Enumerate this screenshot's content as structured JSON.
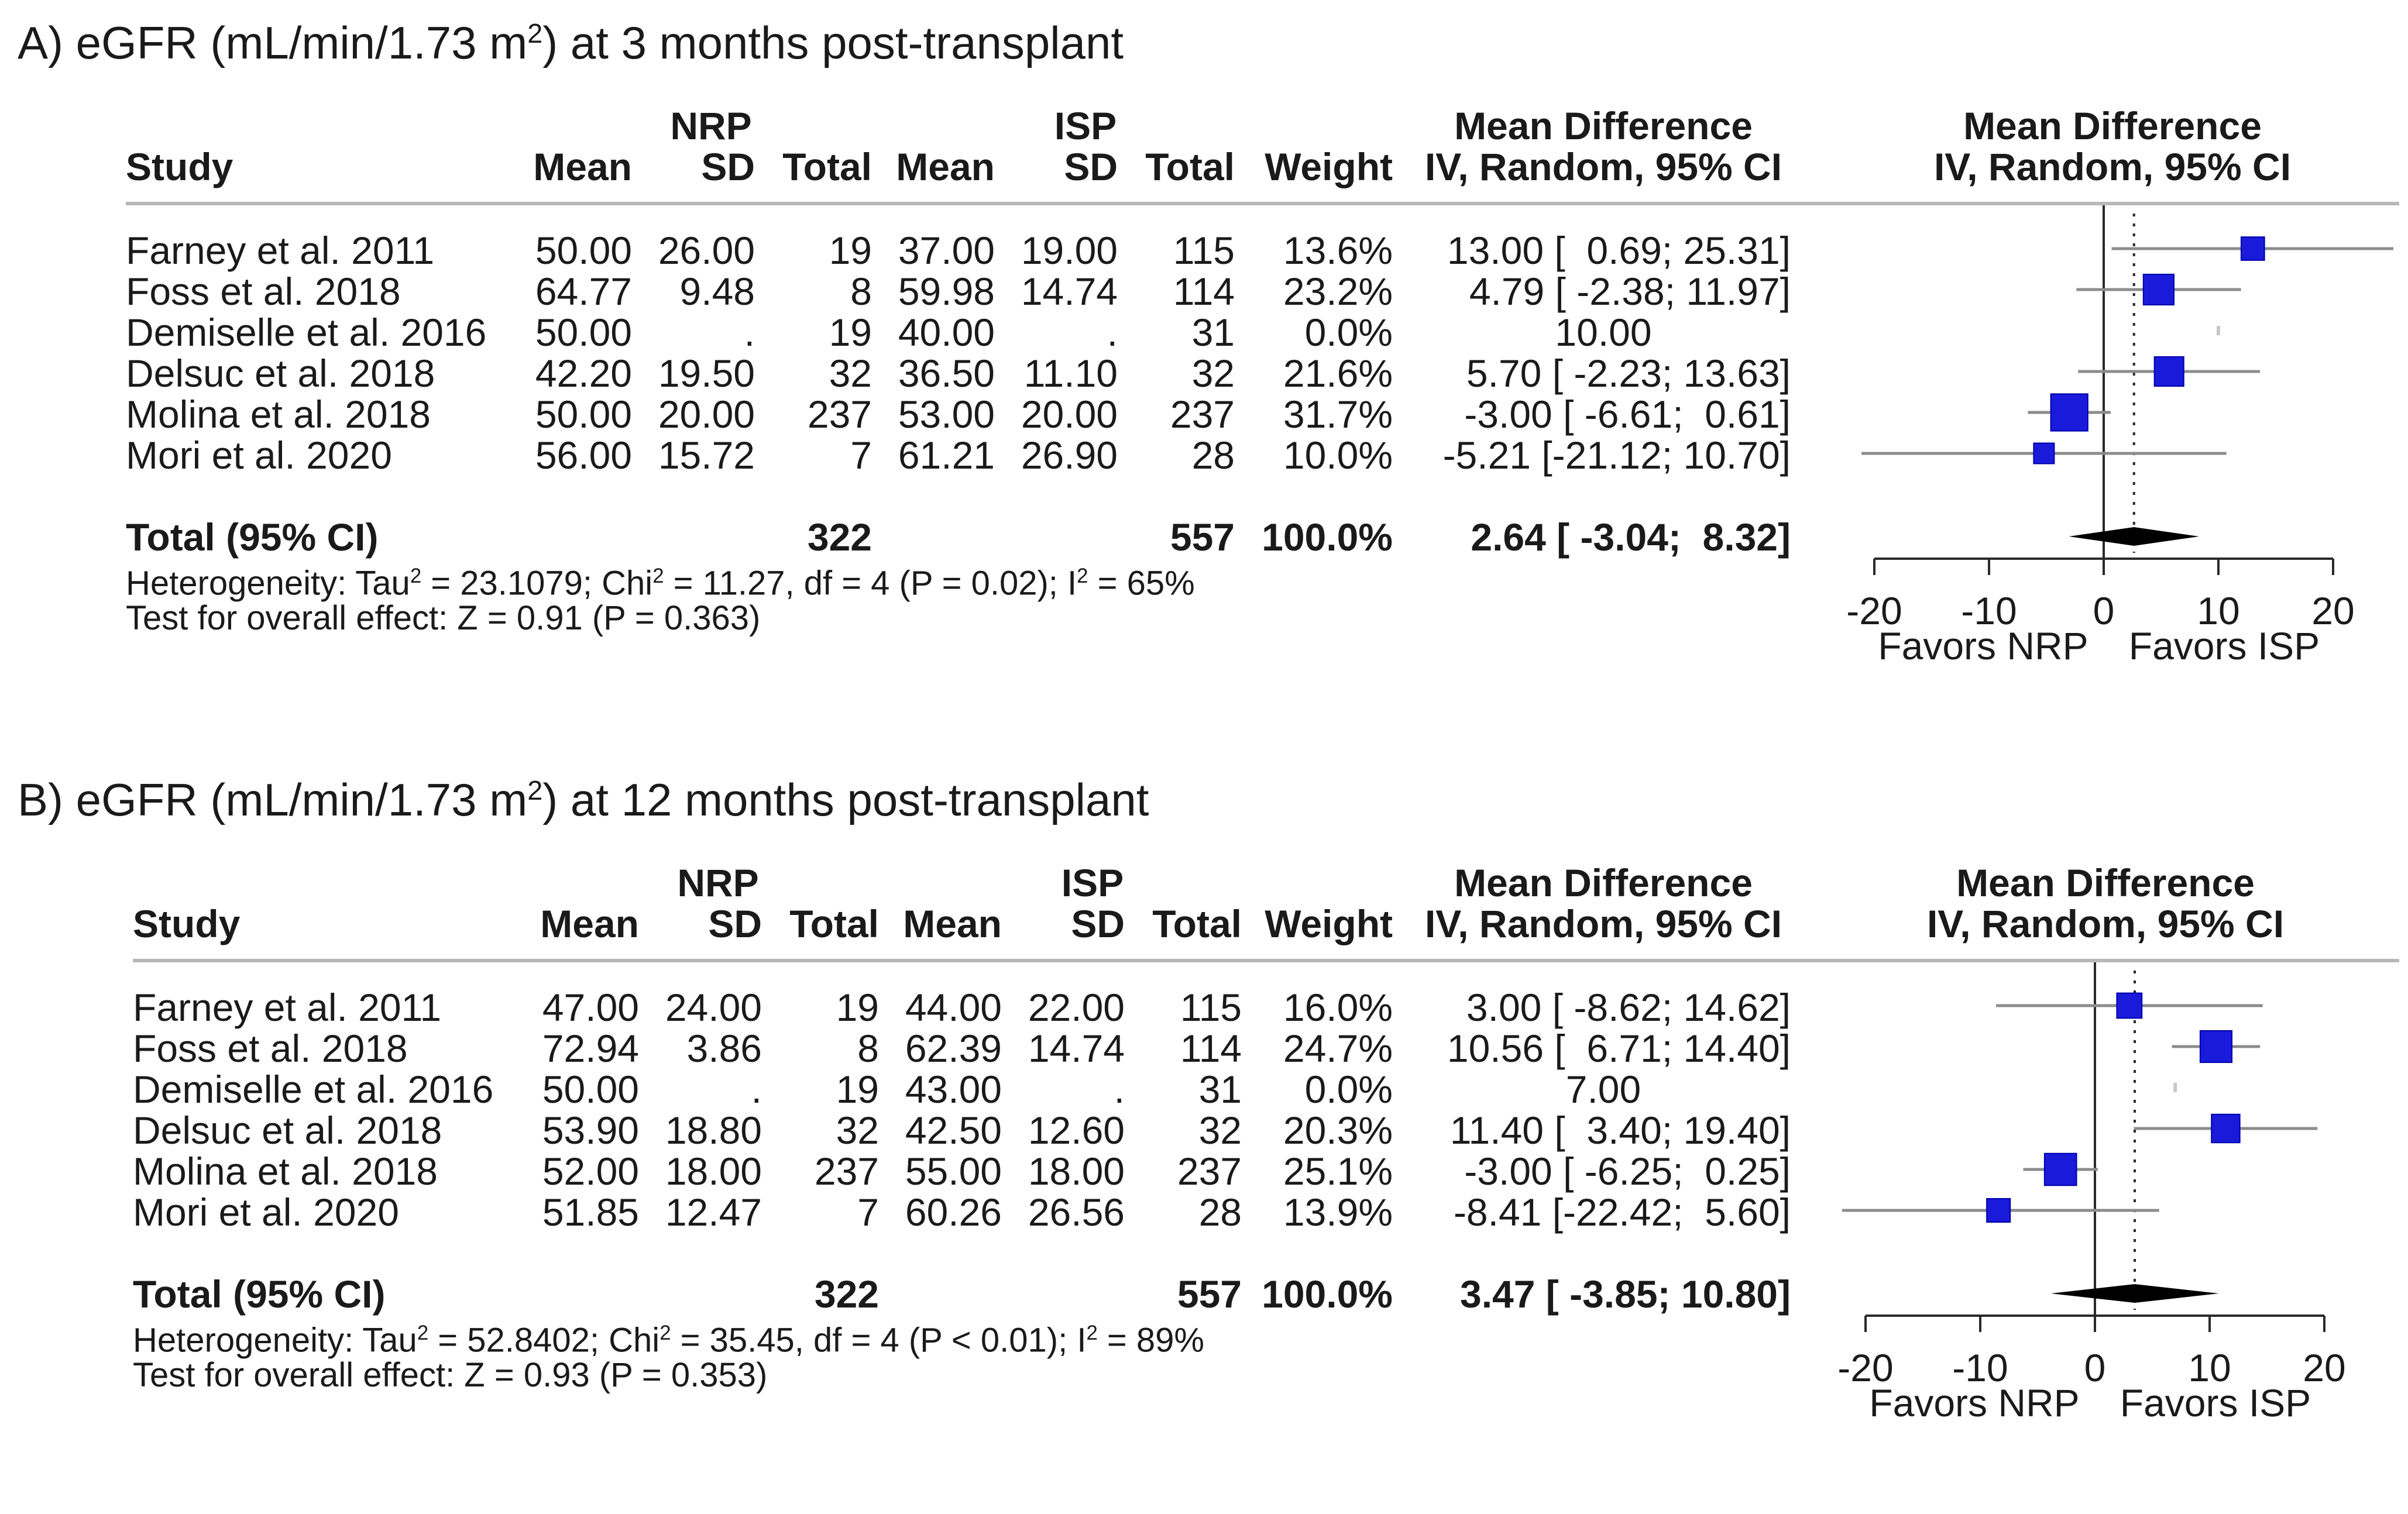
{
  "chart_data": [
    {
      "type": "forest",
      "panel_title": "A) eGFR (mL/min/1.73 m",
      "panel_title_sup": "2",
      "panel_title_rest": ") at 3 months post-transplant",
      "headers": {
        "study": "Study",
        "nrp": "NRP",
        "isp": "ISP",
        "mean": "Mean",
        "sd": "SD",
        "total": "Total",
        "weight": "Weight",
        "md1": "Mean Difference",
        "md2": "IV, Random, 95% CI",
        "plot1": "Mean Difference",
        "plot2": "IV, Random, 95% CI"
      },
      "studies": [
        {
          "name": "Farney et al. 2011",
          "nrp_mean": "50.00",
          "nrp_sd": "26.00",
          "nrp_total": "19",
          "isp_mean": "37.00",
          "isp_sd": "19.00",
          "isp_total": "115",
          "weight": "13.6%",
          "md_text": "13.00 [  0.69; 25.31]",
          "md": 13.0,
          "lo": 0.69,
          "hi": 25.31,
          "w": 13.6
        },
        {
          "name": "Foss et al. 2018",
          "nrp_mean": "64.77",
          "nrp_sd": "9.48",
          "nrp_total": "8",
          "isp_mean": "59.98",
          "isp_sd": "14.74",
          "isp_total": "114",
          "weight": "23.2%",
          "md_text": "4.79 [ -2.38; 11.97]",
          "md": 4.79,
          "lo": -2.38,
          "hi": 11.97,
          "w": 23.2
        },
        {
          "name": "Demiselle et al. 2016",
          "nrp_mean": "50.00",
          "nrp_sd": ".",
          "nrp_total": "19",
          "isp_mean": "40.00",
          "isp_sd": ".",
          "isp_total": "31",
          "weight": "0.0%",
          "md_text": "10.00",
          "md": 10.0,
          "lo": null,
          "hi": null,
          "w": 0.0
        },
        {
          "name": "Delsuc et al. 2018",
          "nrp_mean": "42.20",
          "nrp_sd": "19.50",
          "nrp_total": "32",
          "isp_mean": "36.50",
          "isp_sd": "11.10",
          "isp_total": "32",
          "weight": "21.6%",
          "md_text": "5.70 [ -2.23; 13.63]",
          "md": 5.7,
          "lo": -2.23,
          "hi": 13.63,
          "w": 21.6
        },
        {
          "name": "Molina et al. 2018",
          "nrp_mean": "50.00",
          "nrp_sd": "20.00",
          "nrp_total": "237",
          "isp_mean": "53.00",
          "isp_sd": "20.00",
          "isp_total": "237",
          "weight": "31.7%",
          "md_text": "-3.00 [ -6.61;  0.61]",
          "md": -3.0,
          "lo": -6.61,
          "hi": 0.61,
          "w": 31.7
        },
        {
          "name": "Mori et al. 2020",
          "nrp_mean": "56.00",
          "nrp_sd": "15.72",
          "nrp_total": "7",
          "isp_mean": "61.21",
          "isp_sd": "26.90",
          "isp_total": "28",
          "weight": "10.0%",
          "md_text": "-5.21 [-21.12; 10.70]",
          "md": -5.21,
          "lo": -21.12,
          "hi": 10.7,
          "w": 10.0
        }
      ],
      "total": {
        "label": "Total (95% CI)",
        "nrp_total": "322",
        "isp_total": "557",
        "weight": "100.0%",
        "md_text": "2.64 [ -3.04;  8.32]",
        "md": 2.64,
        "lo": -3.04,
        "hi": 8.32
      },
      "heterogeneity": {
        "prefix": "Heterogeneity: Tau",
        "tau2": "2",
        "mid": " = 23.1079; Chi",
        "chi2": "2",
        "rest": " = 11.27, df = 4 (P = 0.02); I",
        "i2": "2",
        "end": " = 65%"
      },
      "overall": "Test for overall effect: Z = 0.91 (P = 0.363)",
      "axis": {
        "ticks": [
          -20,
          -10,
          0,
          10,
          20
        ],
        "tick_labels": [
          "-20",
          "-10",
          "0",
          "10",
          "20"
        ],
        "xlim": [
          -20,
          20
        ]
      },
      "favors_left": "Favors NRP",
      "favors_right": "Favors ISP"
    },
    {
      "type": "forest",
      "panel_title": "B) eGFR (mL/min/1.73 m",
      "panel_title_sup": "2",
      "panel_title_rest": ") at 12 months post-transplant",
      "headers": {
        "study": "Study",
        "nrp": "NRP",
        "isp": "ISP",
        "mean": "Mean",
        "sd": "SD",
        "total": "Total",
        "weight": "Weight",
        "md1": "Mean Difference",
        "md2": "IV, Random, 95% CI",
        "plot1": "Mean Difference",
        "plot2": "IV, Random, 95% CI"
      },
      "studies": [
        {
          "name": "Farney et al. 2011",
          "nrp_mean": "47.00",
          "nrp_sd": "24.00",
          "nrp_total": "19",
          "isp_mean": "44.00",
          "isp_sd": "22.00",
          "isp_total": "115",
          "weight": "16.0%",
          "md_text": "3.00 [ -8.62; 14.62]",
          "md": 3.0,
          "lo": -8.62,
          "hi": 14.62,
          "w": 16.0
        },
        {
          "name": "Foss et al. 2018",
          "nrp_mean": "72.94",
          "nrp_sd": "3.86",
          "nrp_total": "8",
          "isp_mean": "62.39",
          "isp_sd": "14.74",
          "isp_total": "114",
          "weight": "24.7%",
          "md_text": "10.56 [  6.71; 14.40]",
          "md": 10.56,
          "lo": 6.71,
          "hi": 14.4,
          "w": 24.7
        },
        {
          "name": "Demiselle et al. 2016",
          "nrp_mean": "50.00",
          "nrp_sd": ".",
          "nrp_total": "19",
          "isp_mean": "43.00",
          "isp_sd": ".",
          "isp_total": "31",
          "weight": "0.0%",
          "md_text": "7.00",
          "md": 7.0,
          "lo": null,
          "hi": null,
          "w": 0.0
        },
        {
          "name": "Delsuc et al. 2018",
          "nrp_mean": "53.90",
          "nrp_sd": "18.80",
          "nrp_total": "32",
          "isp_mean": "42.50",
          "isp_sd": "12.60",
          "isp_total": "32",
          "weight": "20.3%",
          "md_text": "11.40 [  3.40; 19.40]",
          "md": 11.4,
          "lo": 3.4,
          "hi": 19.4,
          "w": 20.3
        },
        {
          "name": "Molina et al. 2018",
          "nrp_mean": "52.00",
          "nrp_sd": "18.00",
          "nrp_total": "237",
          "isp_mean": "55.00",
          "isp_sd": "18.00",
          "isp_total": "237",
          "weight": "25.1%",
          "md_text": "-3.00 [ -6.25;  0.25]",
          "md": -3.0,
          "lo": -6.25,
          "hi": 0.25,
          "w": 25.1
        },
        {
          "name": "Mori et al. 2020",
          "nrp_mean": "51.85",
          "nrp_sd": "12.47",
          "nrp_total": "7",
          "isp_mean": "60.26",
          "isp_sd": "26.56",
          "isp_total": "28",
          "weight": "13.9%",
          "md_text": "-8.41 [-22.42;  5.60]",
          "md": -8.41,
          "lo": -22.42,
          "hi": 5.6,
          "w": 13.9
        }
      ],
      "total": {
        "label": "Total (95% CI)",
        "nrp_total": "322",
        "isp_total": "557",
        "weight": "100.0%",
        "md_text": "3.47 [ -3.85; 10.80]",
        "md": 3.47,
        "lo": -3.85,
        "hi": 10.8
      },
      "heterogeneity": {
        "prefix": "Heterogeneity: Tau",
        "tau2": "2",
        "mid": " = 52.8402; Chi",
        "chi2": "2",
        "rest": " = 35.45, df = 4 (P < 0.01); I",
        "i2": "2",
        "end": " = 89%"
      },
      "overall": "Test for overall effect: Z = 0.93 (P = 0.353)",
      "axis": {
        "ticks": [
          -20,
          -10,
          0,
          10,
          20
        ],
        "tick_labels": [
          "-20",
          "-10",
          "0",
          "10",
          "20"
        ],
        "xlim": [
          -20,
          20
        ]
      },
      "favors_left": "Favors NRP",
      "favors_right": "Favors ISP"
    }
  ],
  "colors": {
    "square": "#1a1adb",
    "square_edge": "#0000aa",
    "diamond": "#000000",
    "ci_line": "#8c8c8c",
    "axis": "#2a2a2a",
    "rule": "#b8b8b8"
  }
}
